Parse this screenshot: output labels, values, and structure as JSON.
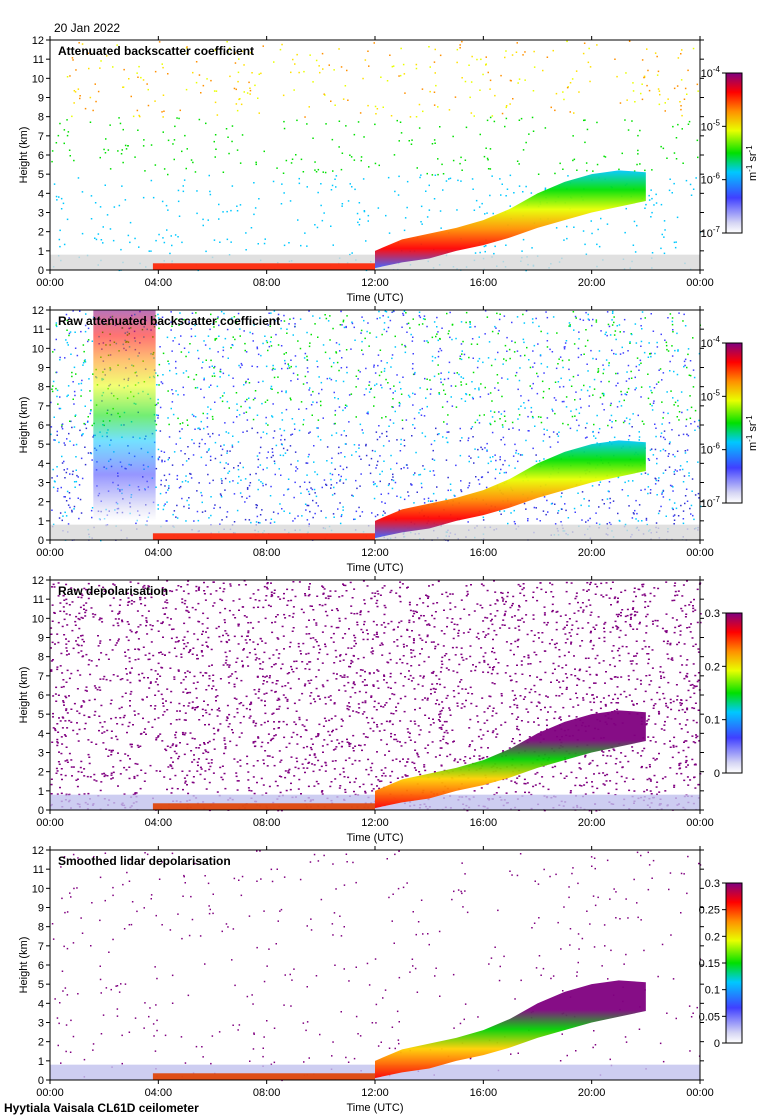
{
  "header": {
    "date": "20 Jan 2022"
  },
  "footer": {
    "site": "Hyytiala Vaisala CL61D ceilometer"
  },
  "chart_data": [
    {
      "type": "heatmap",
      "title": "Attenuated backscatter coefficient",
      "xlabel": "Time (UTC)",
      "ylabel": "Height (km)",
      "x_ticks": [
        "00:00",
        "04:00",
        "08:00",
        "12:00",
        "16:00",
        "20:00",
        "00:00"
      ],
      "y_ticks": [
        "0",
        "1",
        "2",
        "3",
        "4",
        "5",
        "6",
        "7",
        "8",
        "9",
        "10",
        "11",
        "12"
      ],
      "ylim": [
        0,
        12
      ],
      "xlim_hours": [
        0,
        24
      ],
      "colorbar": {
        "scale": "log",
        "range": [
          1e-07,
          0.0001
        ],
        "base": "10",
        "exponents": [
          "-7",
          "-6",
          "-5",
          "-4"
        ],
        "unit_main": "m",
        "unit_exp1": "-1",
        "unit_mid": " sr",
        "unit_exp2": "-1",
        "colormap": "rainbow"
      },
      "cloud_layer_km": {
        "hours": [
          12,
          13,
          14,
          15,
          16,
          17,
          18,
          19,
          20,
          21,
          22
        ],
        "base_top": [
          [
            0.1,
            1.0
          ],
          [
            0.4,
            1.6
          ],
          [
            0.6,
            1.9
          ],
          [
            1.0,
            2.2
          ],
          [
            1.3,
            2.6
          ],
          [
            1.7,
            3.2
          ],
          [
            2.2,
            4.0
          ],
          [
            2.6,
            4.6
          ],
          [
            3.0,
            5.0
          ],
          [
            3.3,
            5.2
          ],
          [
            3.6,
            5.1
          ]
        ]
      }
    },
    {
      "type": "heatmap",
      "title": "Raw attenuated backscatter coefficient",
      "xlabel": "Time (UTC)",
      "ylabel": "Height (km)",
      "x_ticks": [
        "00:00",
        "04:00",
        "08:00",
        "12:00",
        "16:00",
        "20:00",
        "00:00"
      ],
      "y_ticks": [
        "0",
        "1",
        "2",
        "3",
        "4",
        "5",
        "6",
        "7",
        "8",
        "9",
        "10",
        "11",
        "12"
      ],
      "ylim": [
        0,
        12
      ],
      "xlim_hours": [
        0,
        24
      ],
      "colorbar": {
        "scale": "log",
        "range": [
          1e-07,
          0.0001
        ],
        "base": "10",
        "exponents": [
          "-7",
          "-6",
          "-5",
          "-4"
        ],
        "unit_main": "m",
        "unit_exp1": "-1",
        "unit_mid": " sr",
        "unit_exp2": "-1",
        "colormap": "rainbow"
      }
    },
    {
      "type": "heatmap",
      "title": "Raw depolarisation",
      "xlabel": "Time (UTC)",
      "ylabel": "Height (km)",
      "x_ticks": [
        "00:00",
        "04:00",
        "08:00",
        "12:00",
        "16:00",
        "20:00",
        "00:00"
      ],
      "y_ticks": [
        "0",
        "1",
        "2",
        "3",
        "4",
        "5",
        "6",
        "7",
        "8",
        "9",
        "10",
        "11",
        "12"
      ],
      "ylim": [
        0,
        12
      ],
      "xlim_hours": [
        0,
        24
      ],
      "colorbar": {
        "scale": "linear",
        "range": [
          0,
          0.3
        ],
        "ticks": [
          "0",
          "0.1",
          "0.2",
          "0.3"
        ],
        "colormap": "rainbow"
      }
    },
    {
      "type": "heatmap",
      "title": "Smoothed lidar depolarisation",
      "xlabel": "Time (UTC)",
      "ylabel": "Height (km)",
      "x_ticks": [
        "00:00",
        "04:00",
        "08:00",
        "12:00",
        "16:00",
        "20:00",
        "00:00"
      ],
      "y_ticks": [
        "0",
        "1",
        "2",
        "3",
        "4",
        "5",
        "6",
        "7",
        "8",
        "9",
        "10",
        "11",
        "12"
      ],
      "ylim": [
        0,
        12
      ],
      "xlim_hours": [
        0,
        24
      ],
      "colorbar": {
        "scale": "linear",
        "range": [
          0,
          0.3
        ],
        "ticks": [
          "0",
          "0.05",
          "0.1",
          "0.15",
          "0.2",
          "0.25",
          "0.3"
        ],
        "colormap": "rainbow"
      }
    }
  ]
}
